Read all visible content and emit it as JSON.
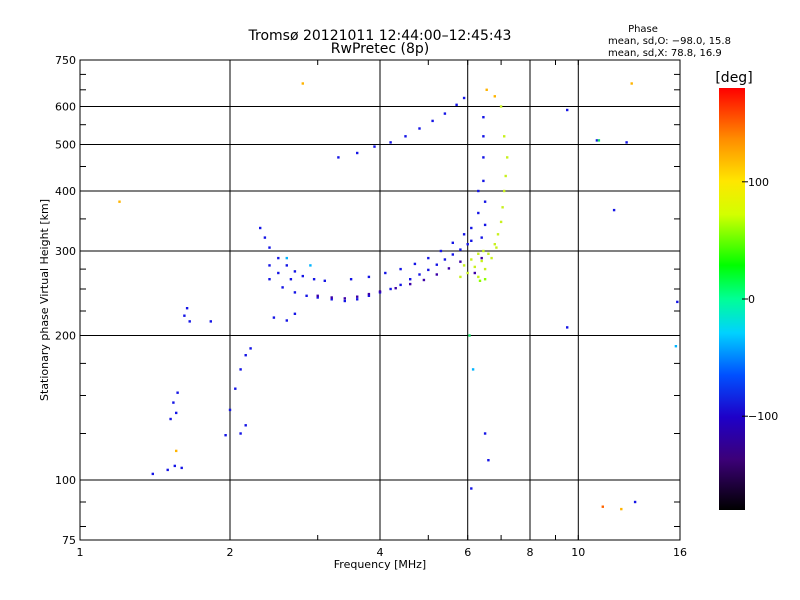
{
  "chart_data": {
    "type": "scatter",
    "title": "Tromsø 20121011 12:44:00–12:45:43",
    "subtitle": "RwPretec (8p)",
    "xlabel": "Frequency [MHz]",
    "ylabel": "Stationary phase Virtual Height [km]",
    "x_scale": "log",
    "y_scale": "log",
    "xlim": [
      1,
      16
    ],
    "ylim": [
      75,
      750
    ],
    "x_ticks": [
      1,
      2,
      4,
      6,
      8,
      10,
      16
    ],
    "x_tick_labels": [
      "1",
      "2",
      "4",
      "6",
      "8",
      "10",
      "16"
    ],
    "y_ticks": [
      75,
      100,
      200,
      300,
      400,
      500,
      600,
      750
    ],
    "y_tick_labels": [
      "75",
      "100",
      "200",
      "300",
      "400",
      "500",
      "600",
      "750"
    ],
    "grid": true,
    "phase_info": {
      "heading": "Phase",
      "line1": "mean, sd,O: −98.0, 15.8",
      "line2": "mean, sd,X:  78.8, 16.9"
    },
    "colorbar": {
      "label": "[deg]",
      "range": [
        -180,
        180
      ],
      "ticks": [
        100,
        0,
        -100
      ],
      "tick_labels": [
        "100",
        "0",
        "−100"
      ]
    },
    "series": [
      {
        "phase_deg": -100,
        "color": "#1414e6",
        "points": [
          [
            1.4,
            103
          ],
          [
            1.5,
            105
          ],
          [
            1.55,
            107
          ],
          [
            1.6,
            106
          ],
          [
            1.52,
            134
          ],
          [
            1.56,
            138
          ],
          [
            1.57,
            152
          ],
          [
            1.54,
            145
          ],
          [
            1.62,
            220
          ],
          [
            1.64,
            228
          ],
          [
            1.66,
            214
          ],
          [
            1.83,
            214
          ],
          [
            1.96,
            124
          ],
          [
            2.0,
            140
          ],
          [
            2.05,
            155
          ],
          [
            2.1,
            170
          ],
          [
            2.15,
            182
          ],
          [
            2.2,
            188
          ],
          [
            2.1,
            125
          ],
          [
            2.15,
            130
          ],
          [
            2.3,
            335
          ],
          [
            2.35,
            320
          ],
          [
            2.4,
            305
          ],
          [
            2.5,
            290
          ],
          [
            2.6,
            280
          ],
          [
            2.7,
            272
          ],
          [
            2.8,
            266
          ],
          [
            2.95,
            262
          ],
          [
            3.1,
            260
          ],
          [
            2.4,
            280
          ],
          [
            2.5,
            270
          ],
          [
            2.65,
            262
          ],
          [
            2.4,
            262
          ],
          [
            2.55,
            252
          ],
          [
            2.7,
            246
          ],
          [
            2.85,
            242
          ],
          [
            3.0,
            240
          ],
          [
            2.6,
            215
          ],
          [
            2.7,
            222
          ],
          [
            2.45,
            218
          ],
          [
            3.2,
            238
          ],
          [
            3.4,
            236
          ],
          [
            3.6,
            238
          ],
          [
            3.8,
            242
          ],
          [
            4.0,
            246
          ],
          [
            4.2,
            250
          ],
          [
            4.4,
            255
          ],
          [
            4.6,
            262
          ],
          [
            4.8,
            268
          ],
          [
            5.0,
            274
          ],
          [
            5.2,
            281
          ],
          [
            5.4,
            288
          ],
          [
            5.6,
            295
          ],
          [
            5.8,
            302
          ],
          [
            6.0,
            310
          ],
          [
            6.1,
            315
          ],
          [
            3.5,
            262
          ],
          [
            3.8,
            265
          ],
          [
            4.1,
            270
          ],
          [
            4.4,
            275
          ],
          [
            4.7,
            282
          ],
          [
            5.0,
            290
          ],
          [
            5.3,
            300
          ],
          [
            5.6,
            312
          ],
          [
            5.9,
            325
          ],
          [
            6.1,
            335
          ],
          [
            3.3,
            470
          ],
          [
            3.6,
            480
          ],
          [
            3.9,
            495
          ],
          [
            4.2,
            505
          ],
          [
            4.5,
            520
          ],
          [
            4.8,
            540
          ],
          [
            5.1,
            560
          ],
          [
            5.4,
            580
          ],
          [
            5.7,
            605
          ],
          [
            5.9,
            625
          ],
          [
            6.45,
            570
          ],
          [
            6.45,
            520
          ],
          [
            6.45,
            470
          ],
          [
            6.45,
            420
          ],
          [
            6.5,
            380
          ],
          [
            6.5,
            340
          ],
          [
            6.3,
            400
          ],
          [
            6.3,
            360
          ],
          [
            6.4,
            320
          ],
          [
            6.6,
            110
          ],
          [
            6.5,
            125
          ],
          [
            6.1,
            96
          ],
          [
            9.5,
            590
          ],
          [
            11.8,
            365
          ],
          [
            12.5,
            505
          ],
          [
            10.9,
            510
          ],
          [
            15.8,
            235
          ],
          [
            13.0,
            90
          ],
          [
            9.5,
            208
          ]
        ]
      },
      {
        "phase_deg": -130,
        "color": "#3c00a8",
        "points": [
          [
            3.0,
            242
          ],
          [
            3.2,
            240
          ],
          [
            3.4,
            239
          ],
          [
            3.6,
            241
          ],
          [
            3.8,
            244
          ],
          [
            4.0,
            247
          ],
          [
            4.3,
            251
          ],
          [
            4.6,
            256
          ],
          [
            4.9,
            261
          ],
          [
            5.2,
            268
          ],
          [
            5.5,
            276
          ],
          [
            5.8,
            285
          ],
          [
            6.2,
            270
          ],
          [
            6.4,
            290
          ]
        ]
      },
      {
        "phase_deg": 80,
        "color": "#c8f01e",
        "points": [
          [
            5.8,
            265
          ],
          [
            6.0,
            270
          ],
          [
            6.2,
            278
          ],
          [
            6.4,
            286
          ],
          [
            6.6,
            296
          ],
          [
            6.8,
            310
          ],
          [
            6.9,
            325
          ],
          [
            7.0,
            345
          ],
          [
            7.05,
            370
          ],
          [
            7.1,
            400
          ],
          [
            7.15,
            430
          ],
          [
            7.2,
            470
          ],
          [
            6.3,
            265
          ],
          [
            6.5,
            275
          ],
          [
            6.7,
            290
          ],
          [
            6.85,
            305
          ],
          [
            5.9,
            280
          ],
          [
            6.1,
            288
          ],
          [
            6.3,
            296
          ],
          [
            6.45,
            300
          ],
          [
            7.0,
            600
          ],
          [
            7.1,
            520
          ]
        ]
      },
      {
        "phase_deg": 130,
        "color": "#ffb400",
        "points": [
          [
            2.8,
            670
          ],
          [
            12.8,
            670
          ],
          [
            1.2,
            380
          ],
          [
            1.56,
            115
          ],
          [
            6.55,
            650
          ],
          [
            6.8,
            630
          ],
          [
            12.2,
            87
          ]
        ]
      },
      {
        "phase_deg": 150,
        "color": "#ff6400",
        "points": [
          [
            11.2,
            88
          ]
        ]
      },
      {
        "phase_deg": 20,
        "color": "#14dc64",
        "points": [
          [
            11.0,
            510
          ],
          [
            6.05,
            200
          ]
        ]
      },
      {
        "phase_deg": 60,
        "color": "#8cff00",
        "points": [
          [
            6.35,
            260
          ],
          [
            6.5,
            262
          ]
        ]
      },
      {
        "phase_deg": -40,
        "color": "#00b4ff",
        "points": [
          [
            6.15,
            170
          ],
          [
            15.7,
            190
          ],
          [
            2.6,
            290
          ],
          [
            2.9,
            280
          ]
        ]
      }
    ]
  }
}
